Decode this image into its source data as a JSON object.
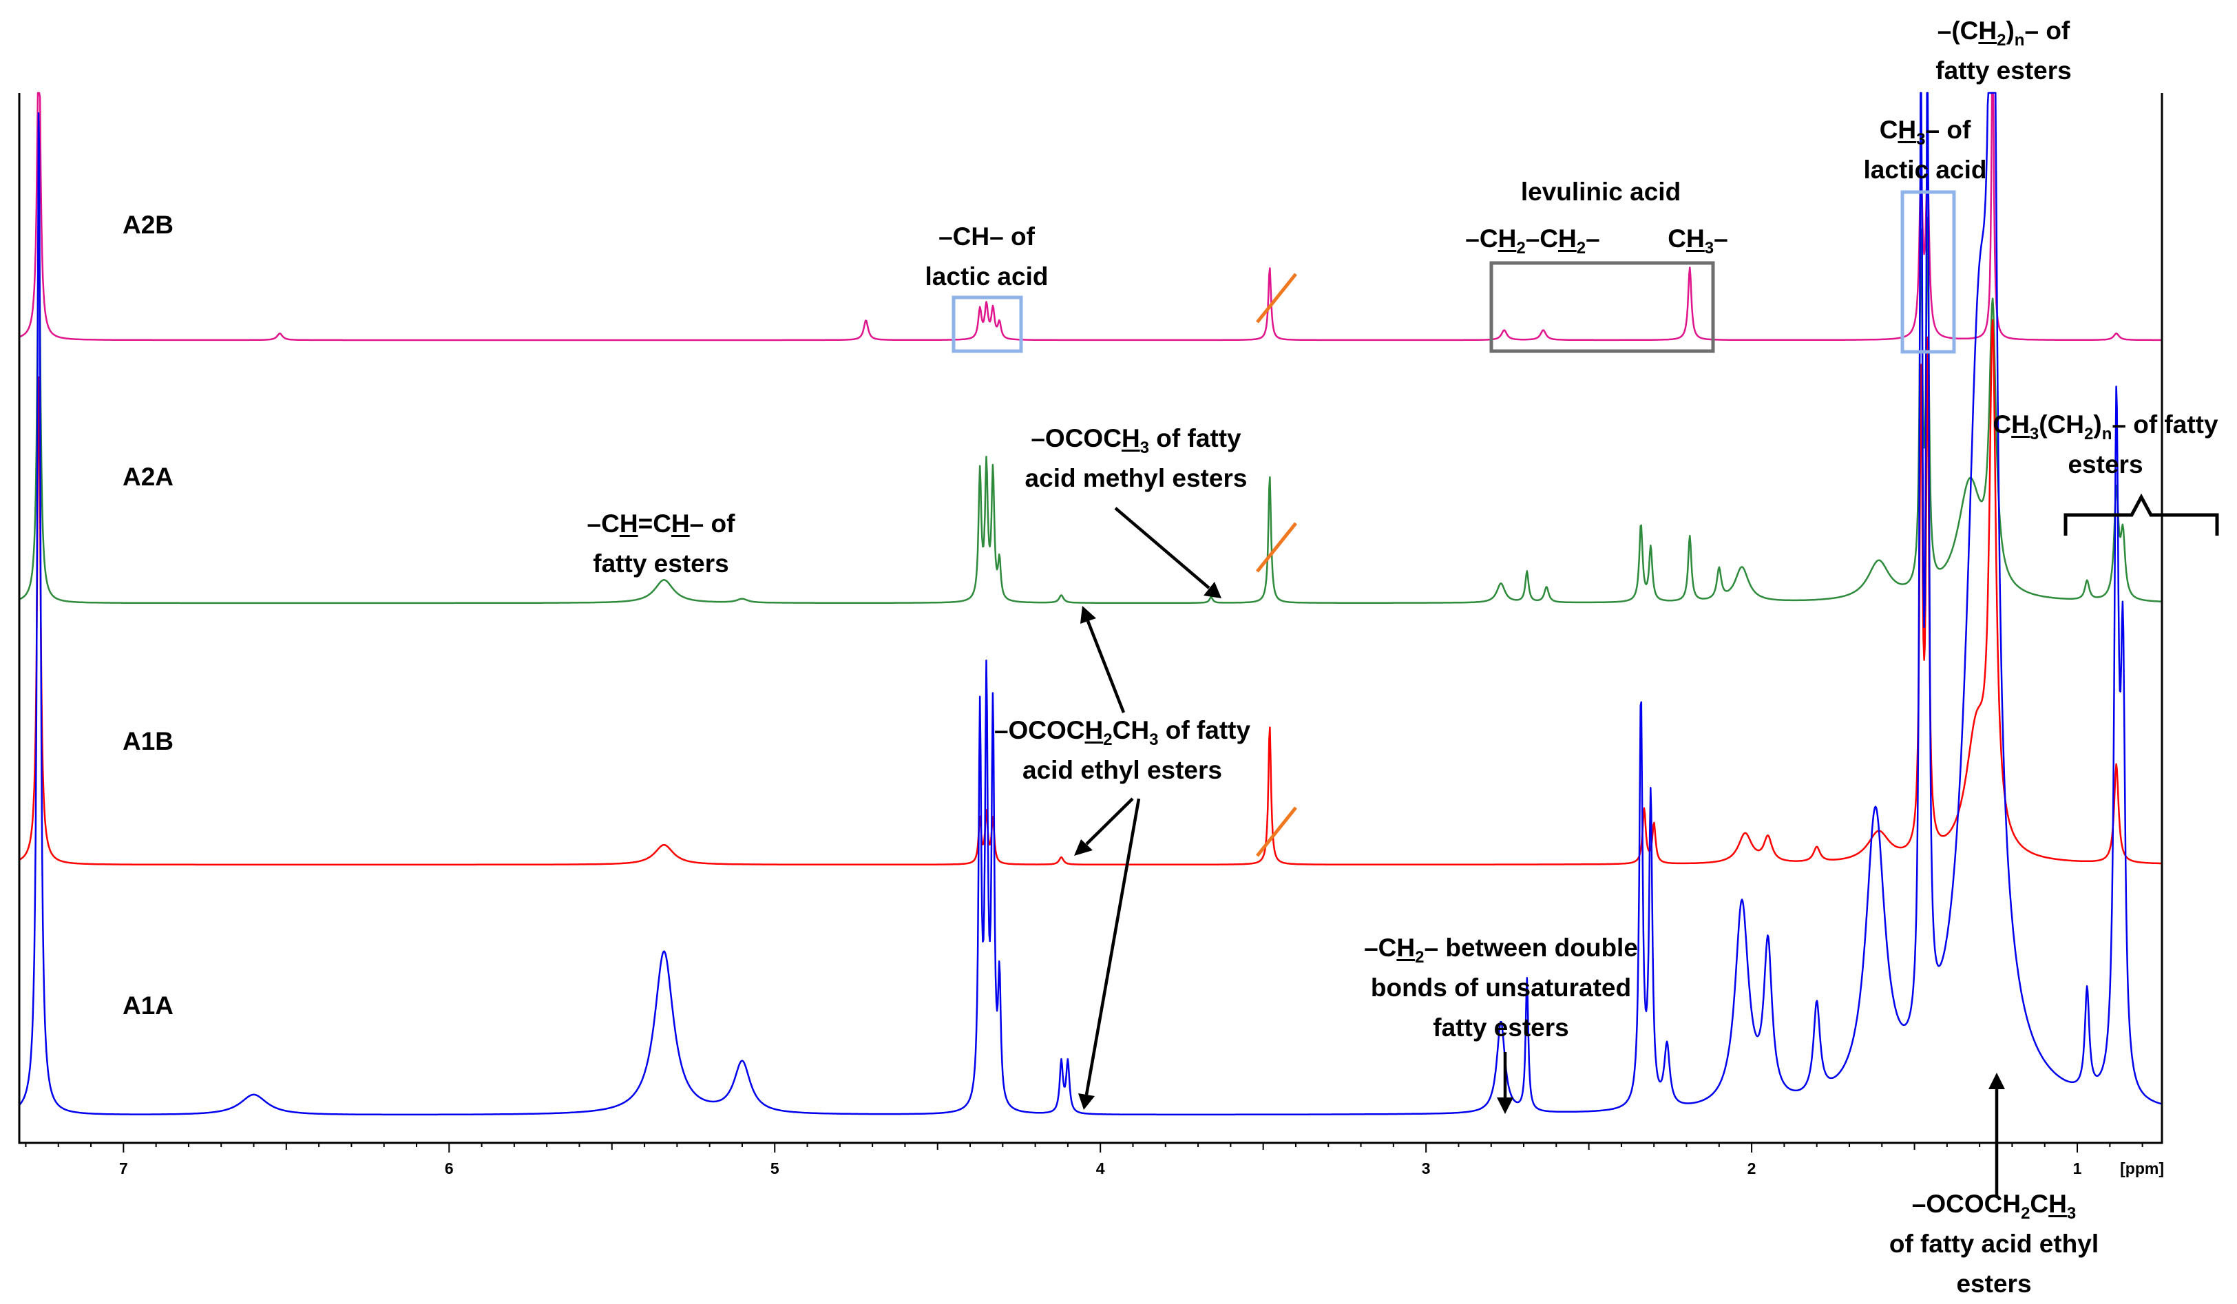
{
  "chart_data": {
    "type": "line",
    "x_unit": "[ppm]",
    "xlim": [
      7.32,
      0.74
    ],
    "x_ticks": [
      7,
      6,
      5,
      4,
      3,
      2,
      1
    ],
    "reversed_x": true,
    "grid": false,
    "legend": "none",
    "series": [
      {
        "name": "A2B",
        "color": "#e0148c",
        "peaks": [
          {
            "ppm": 7.26,
            "height": 1.0,
            "width": 0.006
          },
          {
            "ppm": 6.52,
            "height": 0.02,
            "width": 0.01
          },
          {
            "ppm": 4.72,
            "height": 0.06,
            "width": 0.008
          },
          {
            "ppm": 4.37,
            "height": 0.09,
            "width": 0.006
          },
          {
            "ppm": 4.35,
            "height": 0.1,
            "width": 0.006
          },
          {
            "ppm": 4.33,
            "height": 0.09,
            "width": 0.006
          },
          {
            "ppm": 4.31,
            "height": 0.05,
            "width": 0.006
          },
          {
            "ppm": 3.48,
            "height": 0.22,
            "width": 0.005
          },
          {
            "ppm": 2.76,
            "height": 0.03,
            "width": 0.01
          },
          {
            "ppm": 2.64,
            "height": 0.03,
            "width": 0.01
          },
          {
            "ppm": 2.19,
            "height": 0.22,
            "width": 0.006
          },
          {
            "ppm": 1.48,
            "height": 0.48,
            "width": 0.006
          },
          {
            "ppm": 1.46,
            "height": 0.5,
            "width": 0.006
          },
          {
            "ppm": 1.26,
            "height": 1.0,
            "width": 0.004
          },
          {
            "ppm": 0.88,
            "height": 0.02,
            "width": 0.01
          }
        ]
      },
      {
        "name": "A2A",
        "color": "#2e8b3c",
        "peaks": [
          {
            "ppm": 7.26,
            "height": 1.0,
            "width": 0.006
          },
          {
            "ppm": 5.34,
            "height": 0.06,
            "width": 0.035
          },
          {
            "ppm": 5.1,
            "height": 0.01,
            "width": 0.02
          },
          {
            "ppm": 4.37,
            "height": 0.33,
            "width": 0.005
          },
          {
            "ppm": 4.35,
            "height": 0.34,
            "width": 0.005
          },
          {
            "ppm": 4.33,
            "height": 0.33,
            "width": 0.005
          },
          {
            "ppm": 4.31,
            "height": 0.1,
            "width": 0.005
          },
          {
            "ppm": 4.12,
            "height": 0.02,
            "width": 0.008
          },
          {
            "ppm": 3.66,
            "height": 0.015,
            "width": 0.006
          },
          {
            "ppm": 3.48,
            "height": 0.33,
            "width": 0.005
          },
          {
            "ppm": 2.77,
            "height": 0.05,
            "width": 0.015
          },
          {
            "ppm": 2.69,
            "height": 0.08,
            "width": 0.006
          },
          {
            "ppm": 2.63,
            "height": 0.04,
            "width": 0.008
          },
          {
            "ppm": 2.34,
            "height": 0.2,
            "width": 0.006
          },
          {
            "ppm": 2.31,
            "height": 0.14,
            "width": 0.006
          },
          {
            "ppm": 2.19,
            "height": 0.17,
            "width": 0.006
          },
          {
            "ppm": 2.1,
            "height": 0.08,
            "width": 0.008
          },
          {
            "ppm": 2.03,
            "height": 0.09,
            "width": 0.025
          },
          {
            "ppm": 1.61,
            "height": 0.1,
            "width": 0.04
          },
          {
            "ppm": 1.48,
            "height": 0.9,
            "width": 0.005
          },
          {
            "ppm": 1.46,
            "height": 0.92,
            "width": 0.005
          },
          {
            "ppm": 1.33,
            "height": 0.3,
            "width": 0.045
          },
          {
            "ppm": 1.26,
            "height": 0.7,
            "width": 0.012
          },
          {
            "ppm": 0.97,
            "height": 0.05,
            "width": 0.008
          },
          {
            "ppm": 0.88,
            "height": 0.28,
            "width": 0.008
          },
          {
            "ppm": 0.86,
            "height": 0.16,
            "width": 0.008
          }
        ]
      },
      {
        "name": "A1B",
        "color": "#ff0000",
        "peaks": [
          {
            "ppm": 7.26,
            "height": 1.0,
            "width": 0.006
          },
          {
            "ppm": 5.34,
            "height": 0.04,
            "width": 0.035
          },
          {
            "ppm": 4.37,
            "height": 0.09,
            "width": 0.005
          },
          {
            "ppm": 4.35,
            "height": 0.1,
            "width": 0.005
          },
          {
            "ppm": 4.33,
            "height": 0.09,
            "width": 0.005
          },
          {
            "ppm": 4.12,
            "height": 0.015,
            "width": 0.008
          },
          {
            "ppm": 3.48,
            "height": 0.28,
            "width": 0.005
          },
          {
            "ppm": 2.33,
            "height": 0.11,
            "width": 0.006
          },
          {
            "ppm": 2.3,
            "height": 0.08,
            "width": 0.006
          },
          {
            "ppm": 2.02,
            "height": 0.06,
            "width": 0.025
          },
          {
            "ppm": 1.95,
            "height": 0.05,
            "width": 0.015
          },
          {
            "ppm": 1.8,
            "height": 0.03,
            "width": 0.012
          },
          {
            "ppm": 1.61,
            "height": 0.06,
            "width": 0.04
          },
          {
            "ppm": 1.48,
            "height": 0.95,
            "width": 0.005
          },
          {
            "ppm": 1.46,
            "height": 1.0,
            "width": 0.005
          },
          {
            "ppm": 1.31,
            "height": 0.25,
            "width": 0.04
          },
          {
            "ppm": 1.26,
            "height": 1.0,
            "width": 0.012
          },
          {
            "ppm": 0.88,
            "height": 0.2,
            "width": 0.008
          }
        ]
      },
      {
        "name": "A1A",
        "color": "#0000ee",
        "peaks": [
          {
            "ppm": 7.26,
            "height": 1.0,
            "width": 0.006
          },
          {
            "ppm": 6.6,
            "height": 0.02,
            "width": 0.05
          },
          {
            "ppm": 5.34,
            "height": 0.16,
            "width": 0.035
          },
          {
            "ppm": 5.1,
            "height": 0.05,
            "width": 0.03
          },
          {
            "ppm": 4.37,
            "height": 0.38,
            "width": 0.005
          },
          {
            "ppm": 4.35,
            "height": 0.4,
            "width": 0.005
          },
          {
            "ppm": 4.33,
            "height": 0.38,
            "width": 0.005
          },
          {
            "ppm": 4.31,
            "height": 0.12,
            "width": 0.005
          },
          {
            "ppm": 4.12,
            "height": 0.05,
            "width": 0.006
          },
          {
            "ppm": 4.1,
            "height": 0.05,
            "width": 0.006
          },
          {
            "ppm": 2.77,
            "height": 0.09,
            "width": 0.015
          },
          {
            "ppm": 2.69,
            "height": 0.13,
            "width": 0.005
          },
          {
            "ppm": 2.34,
            "height": 0.4,
            "width": 0.006
          },
          {
            "ppm": 2.31,
            "height": 0.3,
            "width": 0.006
          },
          {
            "ppm": 2.26,
            "height": 0.06,
            "width": 0.01
          },
          {
            "ppm": 2.03,
            "height": 0.2,
            "width": 0.025
          },
          {
            "ppm": 1.95,
            "height": 0.15,
            "width": 0.015
          },
          {
            "ppm": 1.8,
            "height": 0.09,
            "width": 0.012
          },
          {
            "ppm": 1.62,
            "height": 0.28,
            "width": 0.035
          },
          {
            "ppm": 1.48,
            "height": 1.0,
            "width": 0.005
          },
          {
            "ppm": 1.46,
            "height": 1.0,
            "width": 0.005
          },
          {
            "ppm": 1.3,
            "height": 0.75,
            "width": 0.05
          },
          {
            "ppm": 1.26,
            "height": 1.0,
            "width": 0.012
          },
          {
            "ppm": 0.97,
            "height": 0.1,
            "width": 0.008
          },
          {
            "ppm": 0.88,
            "height": 0.65,
            "width": 0.008
          },
          {
            "ppm": 0.86,
            "height": 0.4,
            "width": 0.008
          }
        ]
      }
    ]
  }
}
